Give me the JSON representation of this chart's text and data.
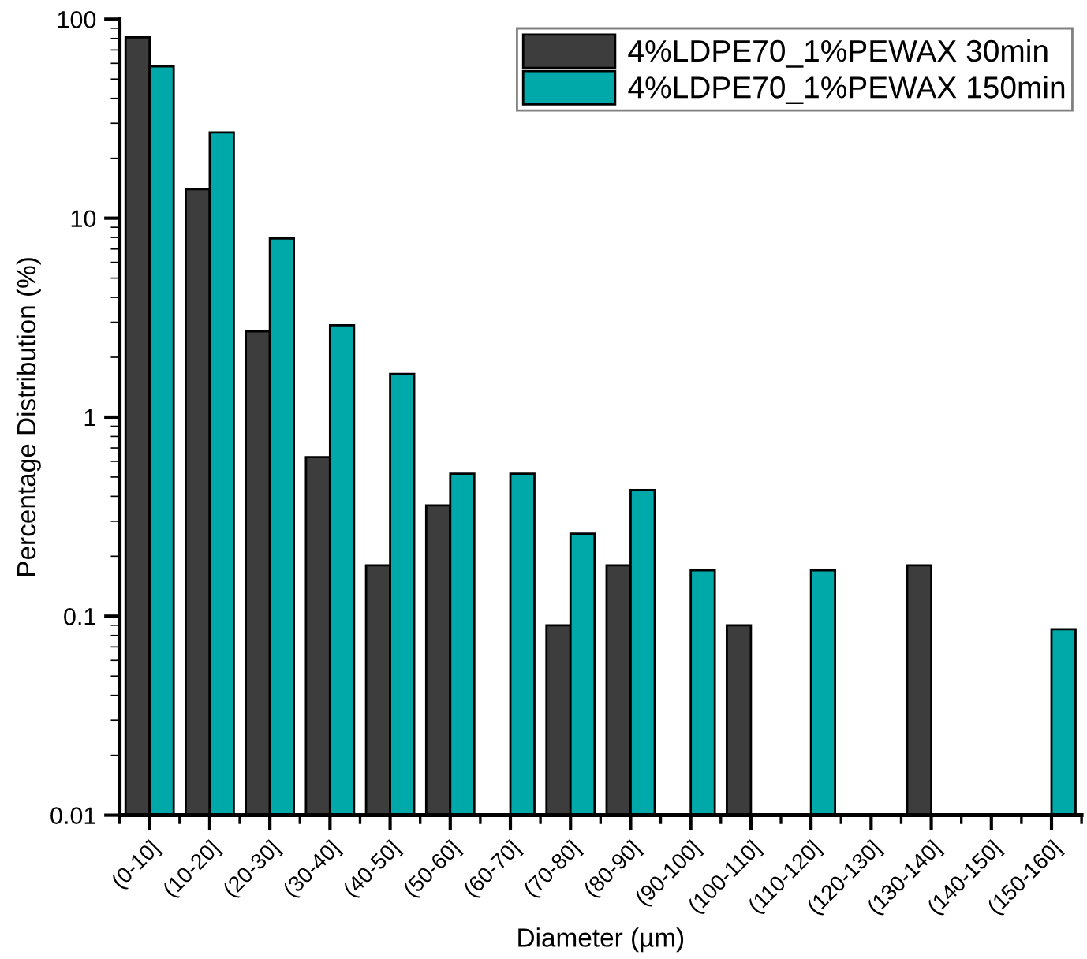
{
  "chart_data": {
    "type": "bar",
    "xlabel": "Diameter (µm)",
    "ylabel": "Percentage Distribution (%)",
    "categories": [
      "(0-10]",
      "(10-20]",
      "(20-30]",
      "(30-40]",
      "(40-50]",
      "(50-60]",
      "(60-70]",
      "(70-80]",
      "(80-90]",
      "(90-100]",
      "(100-110]",
      "(110-120]",
      "(120-130]",
      "(130-140]",
      "(140-150]",
      "(150-160]"
    ],
    "series": [
      {
        "name": "4%LDPE70_1%PEWAX 30min",
        "color": "#3d3d3d",
        "values": [
          81,
          14,
          2.7,
          0.63,
          0.18,
          0.36,
          null,
          0.09,
          0.18,
          null,
          0.09,
          null,
          null,
          0.18,
          null,
          null
        ]
      },
      {
        "name": "4%LDPE70_1%PEWAX 150min",
        "color": "#00a9a9",
        "values": [
          58,
          27,
          7.9,
          2.9,
          1.65,
          0.52,
          0.52,
          0.26,
          0.43,
          0.17,
          null,
          0.17,
          null,
          null,
          null,
          0.086
        ]
      }
    ],
    "log": "y",
    "ylim": [
      0.01,
      100
    ],
    "yticks": [
      0.01,
      0.1,
      1,
      10,
      100
    ],
    "grid": false,
    "legend": "top right"
  }
}
